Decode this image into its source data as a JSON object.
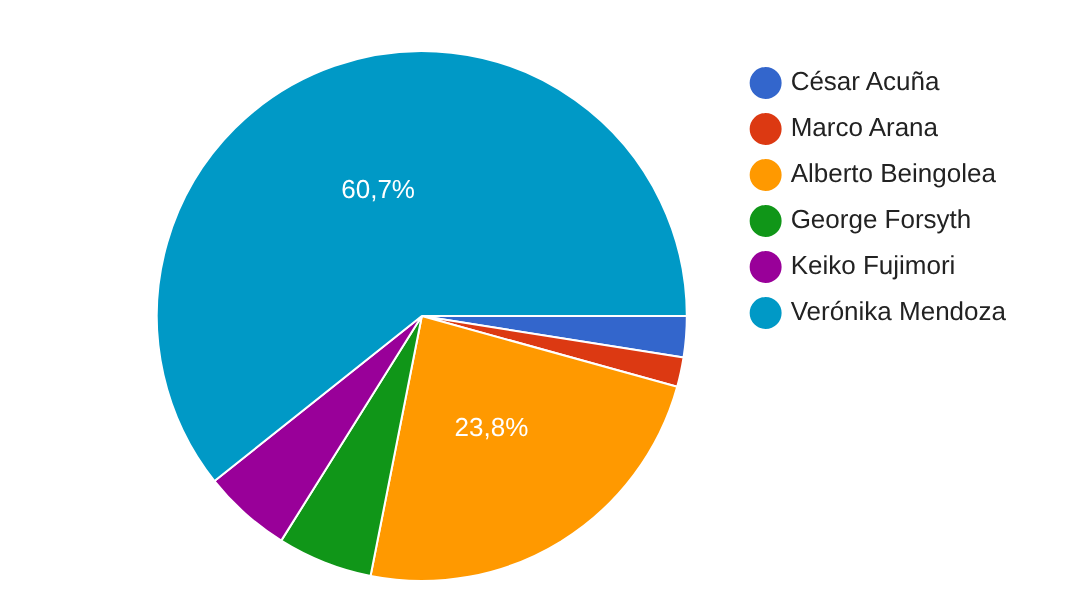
{
  "chart_data": {
    "type": "pie",
    "categories": [
      "César Acuña",
      "Marco Arana",
      "Alberto Beingolea",
      "George Forsyth",
      "Keiko Fujimori",
      "Verónika Mendoza"
    ],
    "values": [
      2.5,
      1.8,
      23.8,
      5.8,
      5.4,
      60.7
    ],
    "colors": [
      "#3366cc",
      "#dc3912",
      "#ff9900",
      "#109618",
      "#990099",
      "#0099c6"
    ],
    "value_labels": [
      null,
      null,
      "23,8%",
      null,
      null,
      "60,7%"
    ],
    "legend": "right"
  }
}
